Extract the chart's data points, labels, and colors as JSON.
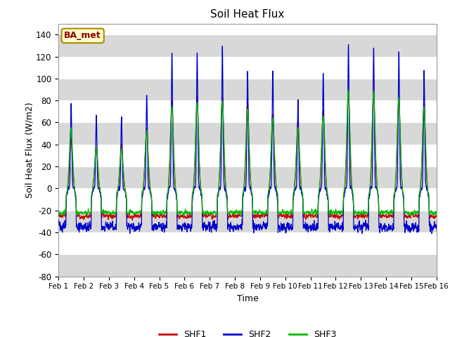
{
  "title": "Soil Heat Flux",
  "xlabel": "Time",
  "ylabel": "Soil Heat Flux (W/m2)",
  "ylim": [
    -80,
    150
  ],
  "yticks": [
    -80,
    -60,
    -40,
    -20,
    0,
    20,
    40,
    60,
    80,
    100,
    120,
    140
  ],
  "legend_labels": [
    "SHF1",
    "SHF2",
    "SHF3"
  ],
  "legend_colors": [
    "#cc0000",
    "#0000cc",
    "#00bb00"
  ],
  "station_label": "BA_met",
  "fig_bg": "#ffffff",
  "plot_bg": "#ffffff",
  "band_color": "#d8d8d8",
  "n_days": 15,
  "ppd": 144,
  "start_day": 1
}
